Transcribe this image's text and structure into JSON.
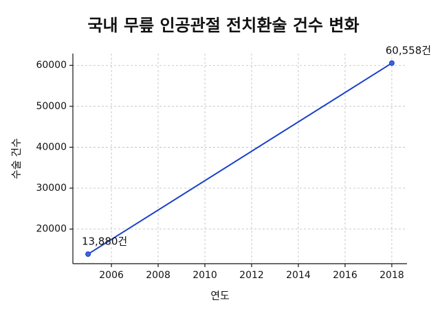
{
  "chart_data": {
    "type": "line",
    "title": "국내 무릎 인공관절 전치환술 건수 변화",
    "x_label": "연도",
    "y_label": "수술 건수",
    "x": [
      2005,
      2018
    ],
    "series": [
      {
        "name": "수술 건수",
        "color": "#1a3fc8",
        "values": [
          13880,
          60558
        ],
        "value_labels": [
          "13,880건",
          "60,558건"
        ]
      }
    ],
    "xlim": [
      2004.35,
      2018.65
    ],
    "xticks": [
      2006,
      2008,
      2010,
      2012,
      2014,
      2016,
      2018
    ],
    "ylim": [
      11546,
      62892
    ],
    "yticks": [
      20000,
      30000,
      40000,
      50000,
      60000
    ],
    "grid": true
  }
}
